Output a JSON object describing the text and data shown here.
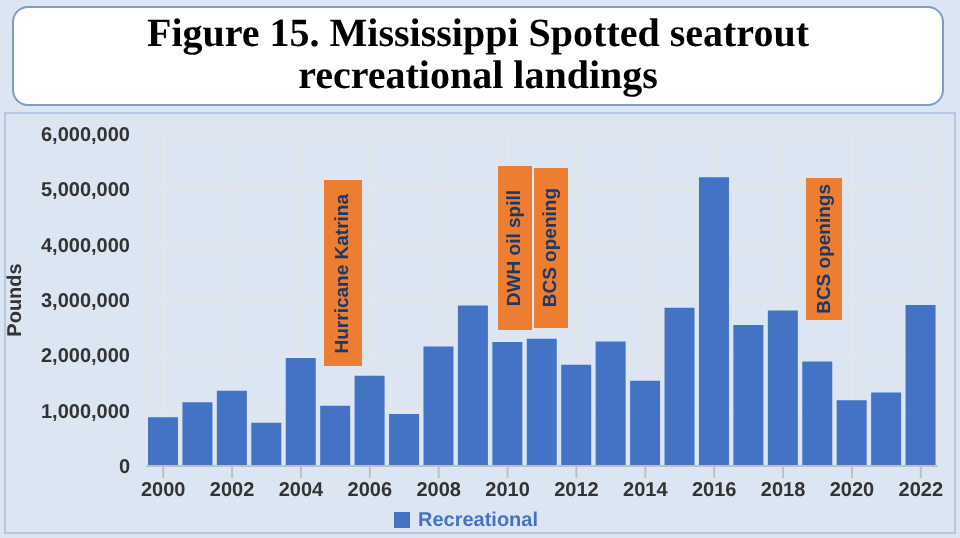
{
  "chart_data": {
    "type": "bar",
    "title": "Figure 15. Mississippi Spotted seatrout recreational landings",
    "ylabel": "Pounds",
    "x": [
      2000,
      2001,
      2002,
      2003,
      2004,
      2005,
      2006,
      2007,
      2008,
      2009,
      2010,
      2011,
      2012,
      2013,
      2014,
      2015,
      2016,
      2017,
      2018,
      2019,
      2020,
      2021,
      2022
    ],
    "series": [
      {
        "name": "Recreational",
        "color": "#4472c4",
        "values": [
          880000,
          1150000,
          1360000,
          780000,
          1950000,
          1090000,
          1630000,
          940000,
          2160000,
          2900000,
          2240000,
          2300000,
          1830000,
          2250000,
          1540000,
          2860000,
          5220000,
          2550000,
          2810000,
          1890000,
          1190000,
          1330000,
          2910000
        ]
      }
    ],
    "xlim": [
      1999.5,
      2022.5
    ],
    "xticks": [
      2000,
      2002,
      2004,
      2006,
      2008,
      2010,
      2012,
      2014,
      2016,
      2018,
      2020,
      2022
    ],
    "ylim": [
      0,
      6000000
    ],
    "yticks": [
      {
        "value": 0,
        "label": "0"
      },
      {
        "value": 1000000,
        "label": "1,000,000"
      },
      {
        "value": 2000000,
        "label": "2,000,000"
      },
      {
        "value": 3000000,
        "label": "3,000,000"
      },
      {
        "value": 4000000,
        "label": "4,000,000"
      },
      {
        "value": 5000000,
        "label": "5,000,000"
      },
      {
        "value": 6000000,
        "label": "6,000,000"
      }
    ],
    "annotations": [
      "Hurricane Katrina",
      "DWH oil spill",
      "BCS opening",
      "BCS openings"
    ],
    "grid": true,
    "legend": "bottom"
  }
}
